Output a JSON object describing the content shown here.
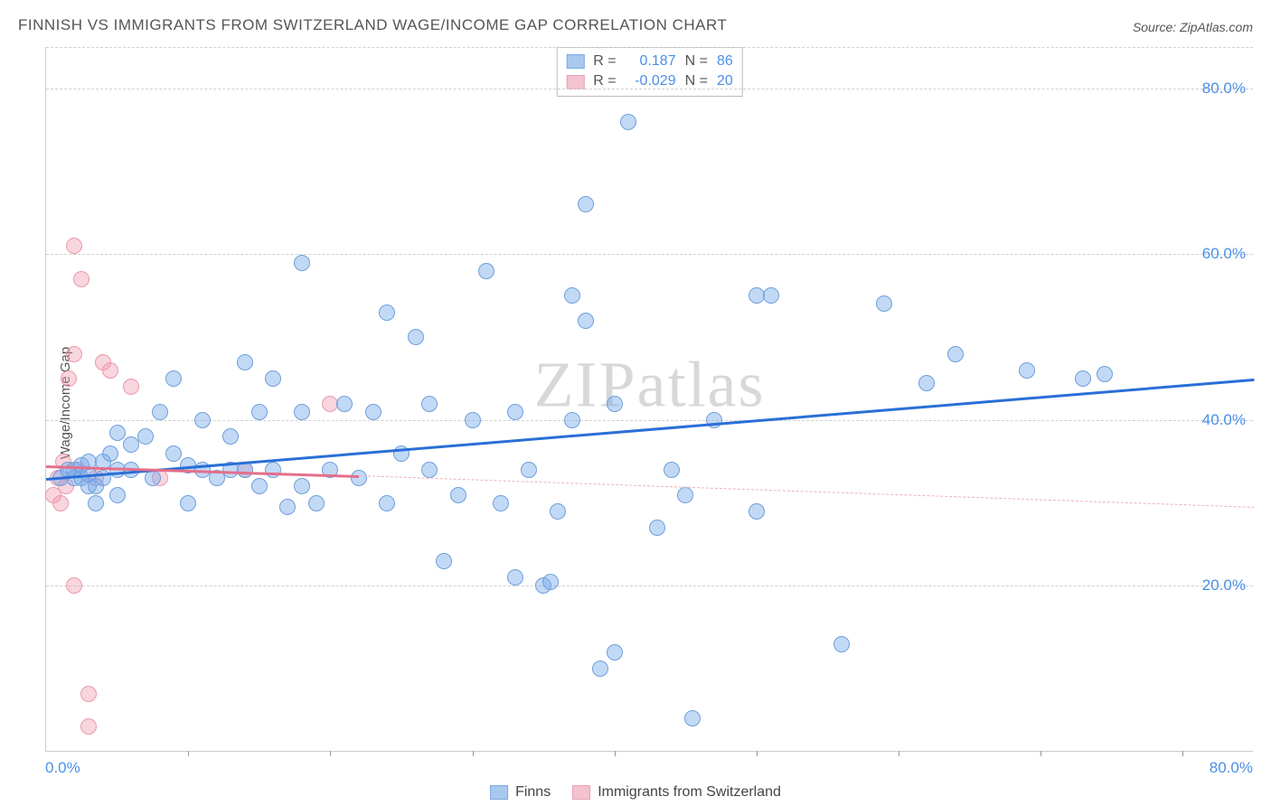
{
  "title": "FINNISH VS IMMIGRANTS FROM SWITZERLAND WAGE/INCOME GAP CORRELATION CHART",
  "source_prefix": "Source: ",
  "source": "ZipAtlas.com",
  "ylabel": "Wage/Income Gap",
  "watermark": "ZIPatlas",
  "chart": {
    "type": "scatter",
    "xlim": [
      0,
      85
    ],
    "ylim": [
      0,
      85
    ],
    "gridlines_y": [
      20,
      40,
      60,
      80
    ],
    "ytick_labels": [
      "20.0%",
      "40.0%",
      "60.0%",
      "80.0%"
    ],
    "xtick_marks": [
      10,
      20,
      30,
      40,
      50,
      60,
      70,
      80
    ],
    "xtick_label_min": "0.0%",
    "xtick_label_max": "80.0%",
    "grid_color": "#d0d0d0",
    "background": "#ffffff",
    "tick_label_color": "#4a8fe7",
    "tick_fontsize": 17,
    "point_radius": 9,
    "series": {
      "finns": {
        "label": "Finns",
        "color_fill": "rgba(120,170,235,0.45)",
        "color_stroke": "#6f9fd8",
        "swatch_fill": "#a9c8ef",
        "swatch_stroke": "#7da9de",
        "R": "0.187",
        "N": "86",
        "trend": {
          "x1": 0,
          "y1": 33,
          "x2": 85,
          "y2": 45,
          "color": "#2a6fd6",
          "width": 3
        },
        "points": [
          [
            1,
            33
          ],
          [
            1.5,
            34
          ],
          [
            2,
            33
          ],
          [
            2,
            34
          ],
          [
            2.5,
            33
          ],
          [
            2.5,
            34.5
          ],
          [
            3,
            32
          ],
          [
            3,
            33.5
          ],
          [
            3,
            35
          ],
          [
            3.5,
            30
          ],
          [
            3.5,
            32
          ],
          [
            4,
            33
          ],
          [
            4,
            35
          ],
          [
            4.5,
            36
          ],
          [
            5,
            31
          ],
          [
            5,
            34
          ],
          [
            5,
            38.5
          ],
          [
            6,
            34
          ],
          [
            6,
            37
          ],
          [
            7,
            38
          ],
          [
            7.5,
            33
          ],
          [
            8,
            41
          ],
          [
            9,
            36
          ],
          [
            9,
            45
          ],
          [
            10,
            30
          ],
          [
            10,
            34.5
          ],
          [
            11,
            34
          ],
          [
            11,
            40
          ],
          [
            12,
            33
          ],
          [
            13,
            34
          ],
          [
            13,
            38
          ],
          [
            14,
            47
          ],
          [
            14,
            34
          ],
          [
            15,
            32
          ],
          [
            15,
            41
          ],
          [
            16,
            34
          ],
          [
            16,
            45
          ],
          [
            17,
            29.5
          ],
          [
            18,
            32
          ],
          [
            18,
            41
          ],
          [
            18,
            59
          ],
          [
            19,
            30
          ],
          [
            20,
            34
          ],
          [
            21,
            42
          ],
          [
            22,
            33
          ],
          [
            23,
            41
          ],
          [
            24,
            30
          ],
          [
            24,
            53
          ],
          [
            25,
            36
          ],
          [
            26,
            50
          ],
          [
            27,
            42
          ],
          [
            27,
            34
          ],
          [
            28,
            23
          ],
          [
            29,
            31
          ],
          [
            30,
            40
          ],
          [
            31,
            58
          ],
          [
            32,
            30
          ],
          [
            33,
            41
          ],
          [
            33,
            21
          ],
          [
            34,
            34
          ],
          [
            35,
            20
          ],
          [
            35.5,
            20.5
          ],
          [
            36,
            29
          ],
          [
            37,
            40
          ],
          [
            37,
            55
          ],
          [
            38,
            52
          ],
          [
            38,
            66
          ],
          [
            39,
            10
          ],
          [
            40,
            42
          ],
          [
            40,
            12
          ],
          [
            41,
            76
          ],
          [
            43,
            27
          ],
          [
            44,
            34
          ],
          [
            45,
            31
          ],
          [
            45.5,
            4
          ],
          [
            47,
            40
          ],
          [
            50,
            29
          ],
          [
            50,
            55
          ],
          [
            51,
            55
          ],
          [
            56,
            13
          ],
          [
            59,
            54
          ],
          [
            62,
            44.5
          ],
          [
            64,
            48
          ],
          [
            69,
            46
          ],
          [
            73,
            45
          ],
          [
            74.5,
            45.5
          ]
        ]
      },
      "immigrants": {
        "label": "Immigrants from Switzerland",
        "color_fill": "rgba(240,150,170,0.40)",
        "color_stroke": "#e89ab0",
        "swatch_fill": "#f3c3cf",
        "swatch_stroke": "#e8a2b5",
        "R": "-0.029",
        "N": "20",
        "trend_solid": {
          "x1": 0,
          "y1": 34.5,
          "x2": 22,
          "y2": 33.3,
          "color": "#e36f8b",
          "width": 2.5
        },
        "trend_dash": {
          "x1": 22,
          "y1": 33.3,
          "x2": 85,
          "y2": 29.5,
          "color": "#eeb0bd",
          "width": 1.5
        },
        "points": [
          [
            0.5,
            31
          ],
          [
            0.8,
            33
          ],
          [
            1,
            30
          ],
          [
            1.2,
            35
          ],
          [
            1.4,
            32
          ],
          [
            1.6,
            45
          ],
          [
            2,
            48
          ],
          [
            2,
            61
          ],
          [
            2.2,
            34
          ],
          [
            2.5,
            57
          ],
          [
            2,
            20
          ],
          [
            3,
            7
          ],
          [
            3,
            3
          ],
          [
            3.5,
            33
          ],
          [
            4,
            47
          ],
          [
            4.5,
            46
          ],
          [
            6,
            44
          ],
          [
            8,
            33
          ],
          [
            14,
            34
          ],
          [
            20,
            42
          ]
        ]
      }
    }
  },
  "correlation_box": {
    "labels": {
      "R": "R =",
      "N": "N ="
    }
  },
  "legend_fontsize": 16
}
